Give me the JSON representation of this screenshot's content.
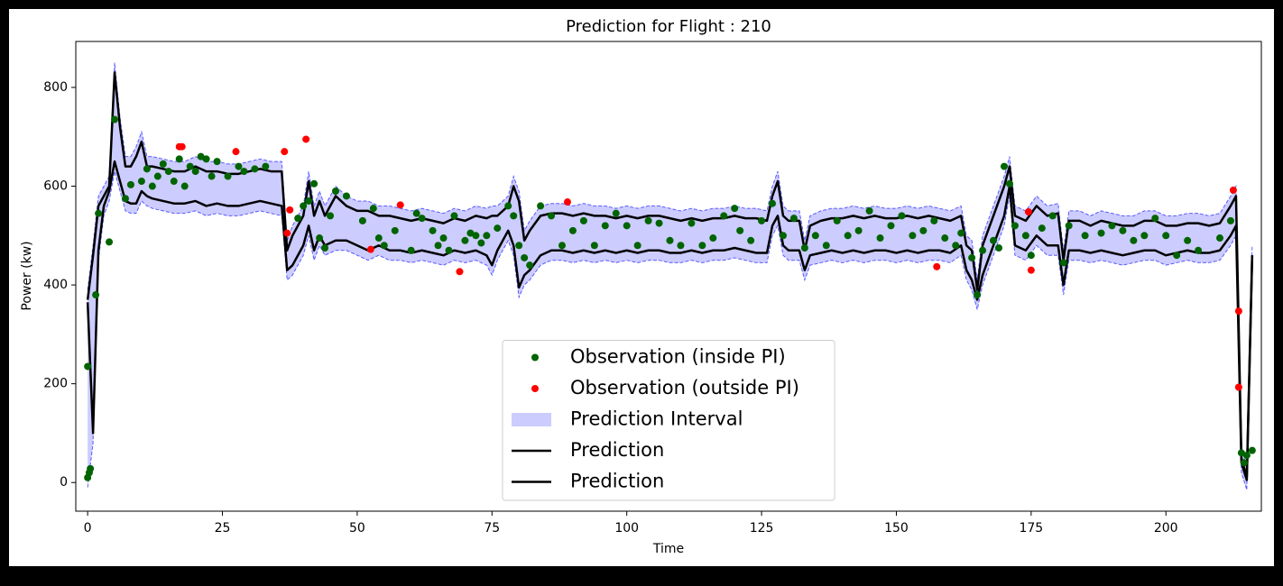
{
  "chart_data": {
    "type": "line",
    "title": "Prediction for Flight : 210",
    "xlabel": "Time",
    "ylabel": "Power (kw)",
    "xlim": [
      -2.2,
      217.7
    ],
    "ylim": [
      -58,
      893
    ],
    "xticks": [
      0,
      25,
      50,
      75,
      100,
      125,
      150,
      175,
      200
    ],
    "yticks": [
      0,
      200,
      400,
      600,
      800
    ],
    "grid": false,
    "legend_loc": "lower center",
    "x": [
      0,
      1,
      2,
      3,
      4,
      5,
      6,
      7,
      8,
      9,
      10,
      11,
      12,
      14,
      16,
      18,
      20,
      22,
      24,
      26,
      28,
      30,
      32,
      34,
      36,
      37,
      38,
      40,
      41,
      42,
      43,
      44,
      46,
      48,
      50,
      52,
      54,
      56,
      58,
      60,
      62,
      64,
      66,
      68,
      70,
      72,
      74,
      75,
      76,
      78,
      79,
      80,
      81,
      82,
      84,
      86,
      88,
      90,
      92,
      94,
      96,
      98,
      100,
      102,
      104,
      106,
      108,
      110,
      112,
      114,
      116,
      118,
      120,
      122,
      124,
      126,
      127,
      128,
      129,
      130,
      132,
      133,
      134,
      136,
      138,
      140,
      142,
      144,
      146,
      148,
      150,
      152,
      154,
      156,
      158,
      160,
      162,
      163,
      164,
      165,
      166,
      168,
      170,
      171,
      172,
      174,
      176,
      178,
      180,
      181,
      182,
      184,
      186,
      188,
      190,
      192,
      194,
      196,
      198,
      200,
      202,
      204,
      206,
      208,
      210,
      212,
      213,
      214,
      215,
      216
    ],
    "series": [
      {
        "name": "Observation (inside PI)",
        "kind": "scatter",
        "color": "#006400",
        "x": [
          0,
          0,
          0.3,
          0.5,
          1.5,
          2,
          4,
          5,
          7,
          8,
          10,
          11,
          12,
          13,
          14,
          15,
          16,
          17,
          18,
          19,
          20,
          21,
          22,
          23,
          24,
          26,
          28,
          29,
          31,
          33,
          39,
          40,
          41,
          42,
          43,
          44,
          45,
          46,
          48,
          51,
          53,
          54,
          55,
          57,
          60,
          61,
          62,
          64,
          65,
          66,
          67,
          68,
          70,
          71,
          72,
          73,
          74,
          76,
          78,
          79,
          80,
          81,
          82,
          84,
          86,
          88,
          90,
          92,
          94,
          96,
          98,
          100,
          102,
          104,
          106,
          108,
          110,
          112,
          114,
          116,
          118,
          120,
          121,
          123,
          125,
          127,
          129,
          131,
          133,
          135,
          137,
          139,
          141,
          143,
          145,
          147,
          149,
          151,
          153,
          155,
          157,
          159,
          161,
          162,
          164,
          165,
          166,
          168,
          169,
          170,
          171,
          172,
          174,
          175,
          177,
          179,
          181,
          182,
          185,
          188,
          190,
          192,
          194,
          196,
          198,
          200,
          202,
          204,
          206,
          210,
          212,
          214,
          214.5,
          215,
          216
        ],
        "values": [
          235,
          10,
          20,
          28,
          380,
          545,
          487,
          735,
          575,
          603,
          610,
          635,
          600,
          620,
          645,
          630,
          610,
          655,
          600,
          640,
          630,
          660,
          655,
          620,
          650,
          620,
          640,
          630,
          635,
          640,
          535,
          560,
          570,
          605,
          495,
          475,
          540,
          590,
          580,
          530,
          555,
          495,
          480,
          510,
          470,
          545,
          535,
          510,
          480,
          495,
          470,
          540,
          490,
          505,
          500,
          485,
          500,
          515,
          560,
          540,
          480,
          455,
          440,
          560,
          540,
          480,
          510,
          530,
          480,
          520,
          545,
          520,
          480,
          530,
          525,
          490,
          480,
          525,
          480,
          495,
          540,
          555,
          510,
          490,
          530,
          565,
          500,
          535,
          475,
          500,
          480,
          530,
          500,
          510,
          550,
          495,
          520,
          540,
          500,
          510,
          530,
          495,
          480,
          505,
          455,
          380,
          470,
          490,
          475,
          640,
          605,
          520,
          500,
          460,
          515,
          540,
          445,
          520,
          500,
          505,
          520,
          510,
          490,
          500,
          535,
          500,
          460,
          490,
          470,
          495,
          530,
          60,
          40,
          55,
          65
        ]
      },
      {
        "name": "Observation (outside PI)",
        "kind": "scatter",
        "color": "#ff0000",
        "x": [
          17,
          17.5,
          27.5,
          36.5,
          40.5,
          37,
          37.5,
          52.5,
          58,
          69,
          89,
          157.5,
          174.5,
          175,
          212.5,
          213.5,
          213.5
        ],
        "values": [
          680,
          680,
          670,
          670,
          695,
          505,
          552,
          472,
          562,
          427,
          568,
          437,
          548,
          430,
          592,
          347,
          193
        ]
      },
      {
        "name": "Prediction Interval",
        "kind": "band",
        "color": "#0000ff",
        "high": [
          390,
          480,
          580,
          600,
          620,
          850,
          740,
          660,
          660,
          680,
          710,
          660,
          660,
          655,
          650,
          650,
          660,
          650,
          650,
          645,
          645,
          650,
          655,
          650,
          650,
          490,
          520,
          560,
          630,
          560,
          590,
          560,
          600,
          580,
          570,
          570,
          560,
          560,
          555,
          550,
          555,
          550,
          545,
          555,
          550,
          560,
          555,
          560,
          560,
          580,
          620,
          590,
          510,
          530,
          560,
          565,
          565,
          560,
          565,
          560,
          560,
          555,
          560,
          555,
          560,
          560,
          555,
          550,
          555,
          550,
          555,
          555,
          560,
          555,
          555,
          550,
          600,
          630,
          560,
          550,
          550,
          490,
          540,
          550,
          555,
          555,
          560,
          555,
          560,
          555,
          555,
          560,
          555,
          560,
          555,
          550,
          560,
          500,
          490,
          410,
          500,
          560,
          620,
          660,
          560,
          550,
          580,
          560,
          565,
          470,
          550,
          550,
          540,
          550,
          545,
          540,
          540,
          550,
          550,
          540,
          540,
          545,
          545,
          540,
          545,
          580,
          600,
          70,
          30,
          480
        ],
        "low": [
          -10,
          80,
          450,
          540,
          570,
          630,
          590,
          550,
          545,
          545,
          570,
          560,
          555,
          550,
          545,
          545,
          550,
          540,
          545,
          540,
          540,
          545,
          550,
          545,
          540,
          410,
          420,
          460,
          500,
          450,
          480,
          460,
          470,
          470,
          460,
          450,
          460,
          450,
          450,
          445,
          450,
          445,
          440,
          450,
          445,
          450,
          440,
          420,
          450,
          490,
          460,
          375,
          400,
          410,
          440,
          450,
          450,
          445,
          450,
          445,
          450,
          445,
          450,
          445,
          450,
          450,
          445,
          445,
          450,
          445,
          450,
          450,
          455,
          450,
          445,
          445,
          500,
          520,
          460,
          450,
          450,
          410,
          440,
          445,
          450,
          445,
          450,
          445,
          450,
          450,
          445,
          450,
          445,
          450,
          450,
          445,
          460,
          410,
          390,
          350,
          400,
          460,
          520,
          580,
          460,
          450,
          480,
          460,
          460,
          380,
          450,
          450,
          445,
          450,
          445,
          440,
          445,
          450,
          450,
          440,
          445,
          450,
          445,
          445,
          450,
          480,
          500,
          20,
          -15,
          440
        ]
      },
      {
        "name": "Prediction",
        "kind": "line",
        "color": "#000000",
        "values": [
          370,
          460,
          560,
          580,
          600,
          830,
          720,
          640,
          640,
          660,
          690,
          640,
          640,
          635,
          630,
          630,
          640,
          630,
          630,
          625,
          625,
          630,
          635,
          630,
          630,
          470,
          500,
          540,
          610,
          540,
          570,
          540,
          580,
          560,
          550,
          550,
          540,
          540,
          535,
          530,
          535,
          530,
          525,
          535,
          530,
          540,
          535,
          540,
          540,
          560,
          600,
          570,
          490,
          510,
          540,
          545,
          545,
          540,
          545,
          540,
          540,
          535,
          540,
          535,
          540,
          540,
          535,
          530,
          535,
          530,
          535,
          535,
          540,
          535,
          535,
          530,
          580,
          610,
          540,
          530,
          530,
          470,
          520,
          530,
          535,
          535,
          540,
          535,
          540,
          535,
          535,
          540,
          535,
          540,
          535,
          530,
          540,
          480,
          470,
          390,
          480,
          540,
          600,
          640,
          540,
          530,
          560,
          540,
          545,
          450,
          530,
          530,
          520,
          530,
          525,
          520,
          520,
          530,
          530,
          520,
          520,
          525,
          525,
          520,
          525,
          560,
          580,
          50,
          10,
          460
        ]
      },
      {
        "name": "Prediction",
        "kind": "line",
        "color": "#000000",
        "values": [
          365,
          100,
          470,
          560,
          590,
          650,
          610,
          570,
          565,
          565,
          590,
          580,
          575,
          570,
          565,
          565,
          570,
          560,
          565,
          560,
          560,
          565,
          570,
          565,
          560,
          430,
          440,
          480,
          520,
          470,
          500,
          480,
          490,
          490,
          480,
          470,
          480,
          470,
          470,
          465,
          470,
          465,
          460,
          470,
          465,
          470,
          460,
          440,
          470,
          510,
          480,
          395,
          420,
          430,
          460,
          470,
          470,
          465,
          470,
          465,
          470,
          465,
          470,
          465,
          470,
          470,
          465,
          465,
          470,
          465,
          470,
          470,
          475,
          470,
          465,
          465,
          520,
          540,
          480,
          470,
          470,
          430,
          460,
          465,
          470,
          465,
          470,
          465,
          470,
          470,
          465,
          470,
          465,
          470,
          470,
          465,
          480,
          430,
          410,
          370,
          420,
          480,
          540,
          600,
          480,
          470,
          500,
          480,
          480,
          400,
          470,
          470,
          465,
          470,
          465,
          460,
          465,
          470,
          470,
          460,
          465,
          470,
          465,
          465,
          470,
          500,
          520,
          40,
          5,
          460
        ]
      }
    ]
  }
}
